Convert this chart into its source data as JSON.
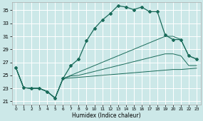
{
  "xlabel": "Humidex (Indice chaleur)",
  "bg_color": "#cce8e8",
  "grid_color": "#ffffff",
  "line_color": "#1a6b5a",
  "xlim": [
    -0.5,
    23.5
  ],
  "ylim": [
    20.5,
    36.2
  ],
  "yticks": [
    21,
    23,
    25,
    27,
    29,
    31,
    33,
    35
  ],
  "xticks": [
    0,
    1,
    2,
    3,
    4,
    5,
    6,
    7,
    8,
    9,
    10,
    11,
    12,
    13,
    14,
    15,
    16,
    17,
    18,
    19,
    20,
    21,
    22,
    23
  ],
  "main_line": [
    26.2,
    23.1,
    23.0,
    23.0,
    22.5,
    21.5,
    24.5,
    26.5,
    27.5,
    30.3,
    32.2,
    33.5,
    34.5,
    35.7,
    35.5,
    35.1,
    35.5,
    34.8,
    34.8,
    31.2,
    30.5,
    30.5,
    28.0,
    27.5
  ],
  "line_top": [
    26.2,
    23.1,
    23.0,
    23.0,
    22.5,
    21.5,
    24.5,
    25.0,
    25.5,
    26.0,
    26.5,
    27.0,
    27.5,
    28.0,
    28.5,
    29.0,
    29.5,
    30.0,
    30.5,
    31.0,
    31.0,
    30.5,
    28.0,
    27.5
  ],
  "line_mid": [
    26.2,
    23.1,
    23.0,
    23.0,
    22.5,
    21.5,
    24.5,
    24.9,
    25.0,
    25.3,
    25.6,
    25.9,
    26.2,
    26.5,
    26.8,
    27.1,
    27.4,
    27.7,
    28.0,
    28.3,
    28.3,
    28.0,
    26.5,
    26.5
  ],
  "line_bot": [
    26.2,
    23.1,
    23.0,
    23.0,
    22.5,
    21.5,
    24.5,
    24.6,
    24.7,
    24.8,
    24.9,
    25.0,
    25.1,
    25.2,
    25.3,
    25.4,
    25.5,
    25.6,
    25.7,
    25.8,
    25.9,
    25.9,
    26.0,
    26.1
  ]
}
